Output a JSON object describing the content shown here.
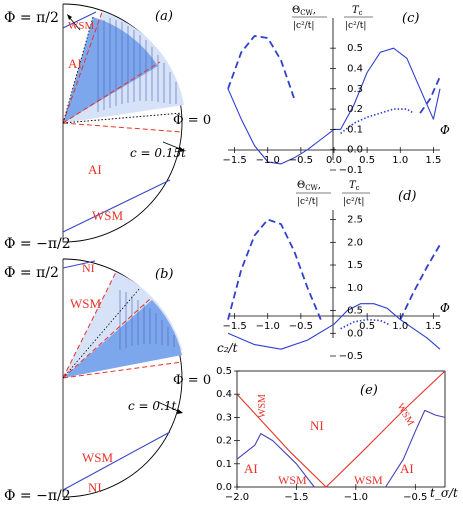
{
  "panel_a": {
    "tag": "(a)",
    "phi_top": "Φ = π/2",
    "phi_bottom": "Φ = −π/2",
    "phi_zero": "Φ = 0",
    "c_label": "c = 0.15t",
    "regions": [
      "WSM",
      "AI",
      "AI",
      "WSM"
    ]
  },
  "panel_b": {
    "tag": "(b)",
    "phi_top": "Φ = π/2",
    "phi_bottom": "Φ = −π/2",
    "phi_zero": "Φ = 0",
    "c_label": "c = 0.1t",
    "regions": [
      "NI",
      "WSM",
      "WSM",
      "NI"
    ]
  },
  "panel_c": {
    "tag": "(c)",
    "ylabel": "Θ_CW/|c²/t|, T_c/|c²/t|",
    "xlabel": "Φ",
    "xticks": [
      "−1.5",
      "−1.0",
      "−0.5",
      "0.0",
      "0.5",
      "1.0",
      "1.5"
    ],
    "yticks": [
      "0.5",
      "0.4",
      "0.3",
      "0.2",
      "0.1",
      "0.0",
      "−0.1"
    ]
  },
  "panel_d": {
    "tag": "(d)",
    "ylabel": "Θ_CW/|c²/t|, T_c/|c²/t|",
    "xlabel": "Φ",
    "xticks": [
      "−1.5",
      "−1.0",
      "−0.5",
      "0.5",
      "1.0",
      "1.5"
    ],
    "yticks": [
      "2.5",
      "2.0",
      "1.5",
      "1.0",
      "0.5",
      "0.0",
      "−0.5"
    ]
  },
  "panel_e": {
    "tag": "(e)",
    "ylabel": "c₂/t",
    "xlabel": "t_σ/t",
    "xticks": [
      "−2.0",
      "−1.5",
      "−1.0",
      "−0.5"
    ],
    "yticks": [
      "0.5",
      "0.4",
      "0.3",
      "0.2",
      "0.1",
      "0.0"
    ],
    "regions": [
      "NI",
      "WSM",
      "WSM",
      "WSM",
      "WSM",
      "AI",
      "AI"
    ]
  },
  "chart_data": [
    {
      "type": "line",
      "panel": "c",
      "xlim": [
        -1.6,
        1.6
      ],
      "ylim": [
        -0.1,
        0.55
      ],
      "series": [
        {
          "style": "solid",
          "x": [
            -1.6,
            -1.4,
            -1.2,
            -1.0,
            -0.8,
            -0.6,
            -0.4,
            -0.2,
            0.0,
            0.1,
            0.3,
            0.5,
            0.7,
            0.9,
            1.1,
            1.3,
            1.5,
            1.6
          ],
          "y": [
            0.3,
            0.15,
            0.02,
            -0.06,
            -0.07,
            -0.04,
            0.0,
            0.05,
            0.1,
            0.1,
            0.22,
            0.38,
            0.48,
            0.5,
            0.45,
            0.3,
            0.15,
            0.3
          ]
        },
        {
          "style": "dashed",
          "x": [
            -1.6,
            -1.4,
            -1.2,
            -1.0,
            -0.8,
            -0.6
          ],
          "y": [
            0.3,
            0.48,
            0.56,
            0.55,
            0.44,
            0.25
          ]
        },
        {
          "style": "dotted",
          "x": [
            0.1,
            0.3,
            0.5,
            0.7,
            0.9,
            1.1,
            1.2
          ],
          "y": [
            0.08,
            0.13,
            0.16,
            0.18,
            0.2,
            0.2,
            0.18
          ]
        },
        {
          "style": "dashed",
          "x": [
            1.3,
            1.45,
            1.6
          ],
          "y": [
            0.18,
            0.25,
            0.36
          ]
        }
      ]
    },
    {
      "type": "line",
      "panel": "d",
      "xlim": [
        -1.6,
        1.6
      ],
      "ylim": [
        -0.5,
        2.6
      ],
      "series": [
        {
          "style": "solid",
          "x": [
            -1.6,
            -1.2,
            -0.8,
            -0.4,
            0.0,
            0.2,
            0.4,
            0.6,
            0.8,
            1.0,
            1.2,
            1.4,
            1.6
          ],
          "y": [
            0.0,
            -0.25,
            -0.35,
            -0.15,
            0.2,
            0.5,
            0.65,
            0.65,
            0.55,
            0.3,
            0.1,
            -0.1,
            -0.35
          ]
        },
        {
          "style": "dashed",
          "x": [
            -1.6,
            -1.4,
            -1.2,
            -1.0,
            -0.8,
            -0.6,
            -0.4,
            -0.2
          ],
          "y": [
            0.3,
            1.4,
            2.15,
            2.5,
            2.4,
            1.8,
            1.0,
            0.3
          ]
        },
        {
          "style": "dotted",
          "x": [
            0.1,
            0.3,
            0.5,
            0.7,
            0.85
          ],
          "y": [
            0.1,
            0.25,
            0.3,
            0.28,
            0.18
          ]
        },
        {
          "style": "dashed",
          "x": [
            1.0,
            1.2,
            1.4,
            1.6
          ],
          "y": [
            0.3,
            0.9,
            1.45,
            1.95
          ]
        }
      ]
    },
    {
      "type": "line",
      "panel": "e",
      "xlim": [
        -2.0,
        -0.25
      ],
      "ylim": [
        0.0,
        0.5
      ],
      "series": [
        {
          "color": "#e8332a",
          "x": [
            -2.0,
            -1.55,
            -1.25,
            -0.95,
            -0.6,
            -0.25
          ],
          "y": [
            0.4,
            0.15,
            0.0,
            0.15,
            0.33,
            0.5
          ]
        },
        {
          "color": "#4343b8",
          "x": [
            -2.0,
            -1.85,
            -1.8,
            -1.7,
            -1.5,
            -1.35
          ],
          "y": [
            0.12,
            0.18,
            0.23,
            0.2,
            0.1,
            0.0
          ]
        },
        {
          "color": "#4343b8",
          "x": [
            -0.75,
            -0.6,
            -0.5,
            -0.42,
            -0.33,
            -0.25
          ],
          "y": [
            0.0,
            0.12,
            0.24,
            0.33,
            0.31,
            0.3
          ]
        }
      ]
    }
  ]
}
